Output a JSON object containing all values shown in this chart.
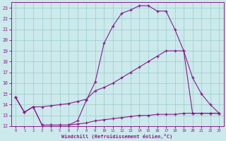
{
  "xlabel": "Windchill (Refroidissement éolien,°C)",
  "xlim": [
    -0.5,
    23.5
  ],
  "ylim": [
    12,
    23.5
  ],
  "yticks": [
    12,
    13,
    14,
    15,
    16,
    17,
    18,
    19,
    20,
    21,
    22,
    23
  ],
  "xticks": [
    0,
    1,
    2,
    3,
    4,
    5,
    6,
    7,
    8,
    9,
    10,
    11,
    12,
    13,
    14,
    15,
    16,
    17,
    18,
    19,
    20,
    21,
    22,
    23
  ],
  "bg_color": "#cce9ec",
  "line_color": "#8b1a8b",
  "grid_color": "#99cccc",
  "line1_x": [
    0,
    1,
    2,
    3,
    4,
    5,
    6,
    7,
    8,
    9,
    10,
    11,
    12,
    13,
    14,
    15,
    16,
    17,
    18,
    19,
    20,
    21,
    22,
    23
  ],
  "line1_y": [
    14.7,
    13.3,
    13.8,
    12.1,
    12.1,
    12.1,
    12.1,
    12.5,
    14.4,
    16.1,
    19.7,
    21.3,
    22.5,
    22.8,
    23.2,
    23.2,
    22.7,
    22.7,
    21.0,
    19.0,
    13.2,
    13.2,
    13.2,
    13.2
  ],
  "line2_x": [
    0,
    1,
    2,
    3,
    4,
    5,
    6,
    7,
    8,
    9,
    10,
    11,
    12,
    13,
    14,
    15,
    16,
    17,
    18,
    19,
    20,
    21,
    22,
    23
  ],
  "line2_y": [
    14.7,
    13.3,
    13.8,
    13.8,
    13.9,
    14.0,
    14.1,
    14.3,
    14.5,
    15.3,
    15.6,
    16.0,
    16.5,
    17.0,
    17.5,
    18.0,
    18.5,
    19.0,
    19.0,
    19.0,
    16.5,
    15.0,
    14.0,
    13.2
  ],
  "line3_x": [
    0,
    1,
    2,
    3,
    4,
    5,
    6,
    7,
    8,
    9,
    10,
    11,
    12,
    13,
    14,
    15,
    16,
    17,
    18,
    19,
    20,
    21,
    22,
    23
  ],
  "line3_y": [
    14.7,
    13.3,
    13.8,
    12.1,
    12.1,
    12.1,
    12.1,
    12.2,
    12.3,
    12.5,
    12.6,
    12.7,
    12.8,
    12.9,
    13.0,
    13.0,
    13.1,
    13.1,
    13.1,
    13.2,
    13.2,
    13.2,
    13.2,
    13.2
  ]
}
